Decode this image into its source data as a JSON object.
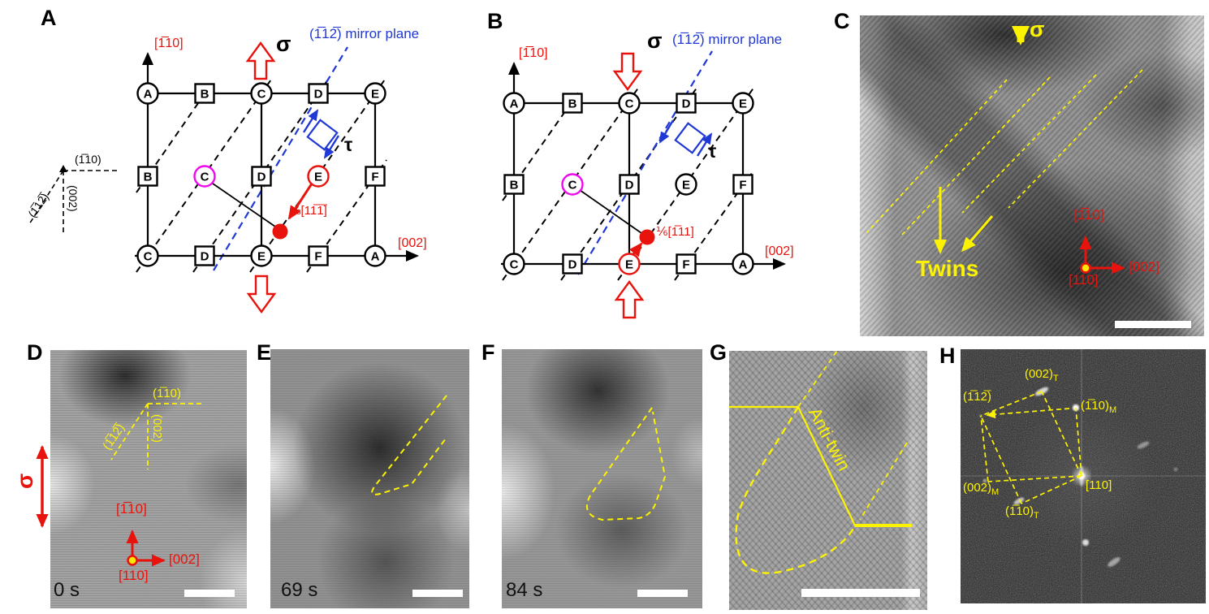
{
  "colors": {
    "red": "#e8130c",
    "blue": "#2038d5",
    "magenta": "#f008f0",
    "yellow": "#fdf300",
    "scale_bar": "#ffffff"
  },
  "panelA": {
    "label": "A",
    "sigma": "σ",
    "tau": "τ",
    "mirror_plane": "(1̅12̅) mirror plane",
    "axis_vertical": "[1̅10]",
    "axis_horizontal": "[002]",
    "partial_dislocation": "⅓[11̅1̅]",
    "legend": {
      "diagonal_plane": "(1̅12̅)",
      "horizontal_plane": "(1̅10)",
      "vertical_plane": "(002)"
    },
    "lattice_rows": [
      [
        "A",
        "B",
        "C",
        "D",
        "E"
      ],
      [
        "B",
        "C",
        "D",
        "E",
        "F"
      ],
      [
        "C",
        "D",
        "E",
        "F",
        "A"
      ]
    ]
  },
  "panelB": {
    "label": "B",
    "sigma": "σ",
    "tau": "τ",
    "mirror_plane": "(1̅12̅) mirror plane",
    "axis_vertical": "[1̅10]",
    "axis_horizontal": "[002]",
    "partial_dislocation": "⅙[1̅11]",
    "lattice_rows": [
      [
        "A",
        "B",
        "C",
        "D",
        "E"
      ],
      [
        "B",
        "C",
        "D",
        "E",
        "F"
      ],
      [
        "C",
        "D",
        "E",
        "F",
        "A"
      ]
    ]
  },
  "panelC": {
    "label": "C",
    "sigma": "σ",
    "annotation": "Twins",
    "axis_vertical": "[1̅10]",
    "axis_horizontal": "[002]",
    "zone_axis": "[110]"
  },
  "panelD": {
    "label": "D",
    "sigma": "σ",
    "time": "0 s",
    "plane_diagonal": "(1̅12̅)",
    "plane_horizontal": "(1̅10)",
    "plane_vertical": "(002)",
    "axis_vertical": "[1̅10]",
    "axis_horizontal": "[002]",
    "zone_axis": "[110]"
  },
  "panelE": {
    "label": "E",
    "time": "69 s"
  },
  "panelF": {
    "label": "F",
    "time": "84 s"
  },
  "panelG": {
    "label": "G",
    "annotation": "Anti-twin"
  },
  "panelH": {
    "label": "H",
    "spots": [
      {
        "text": "(002)",
        "sub": "T"
      },
      {
        "text": "(1̅12̅)",
        "sub": ""
      },
      {
        "text": "(1̅10)",
        "sub": "M"
      },
      {
        "text": "[110]",
        "sub": ""
      },
      {
        "text": "(002)",
        "sub": "M"
      },
      {
        "text": "(1̅10)",
        "sub": "T"
      }
    ]
  }
}
